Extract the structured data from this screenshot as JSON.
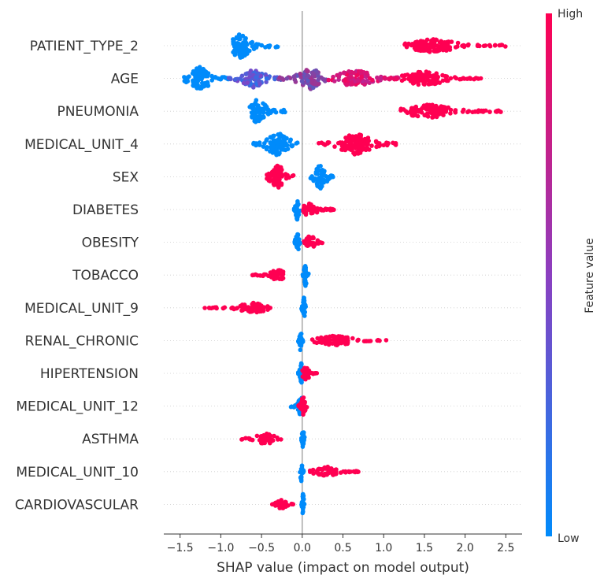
{
  "chart_data": {
    "type": "scatter",
    "subtype": "shap-beeswarm",
    "xlabel": "SHAP value (impact on model output)",
    "xlim": [
      -1.7,
      2.7
    ],
    "xticks": [
      -1.5,
      -1.0,
      -0.5,
      0.0,
      0.5,
      1.0,
      1.5,
      2.0,
      2.5
    ],
    "xtick_labels": [
      "−1.5",
      "−1.0",
      "−0.5",
      "0.0",
      "0.5",
      "1.0",
      "1.5",
      "2.0",
      "2.5"
    ],
    "colorbar": {
      "label": "Feature value",
      "high": "High",
      "low": "Low",
      "low_color": "#008bfb",
      "mid_color": "#8b3fc0",
      "high_color": "#ff0052"
    },
    "features": [
      {
        "name": "PATIENT_TYPE_2",
        "clusters": [
          {
            "from": -0.85,
            "to": -0.3,
            "peak": -0.76,
            "density": 1.0,
            "color": "low"
          },
          {
            "from": 1.25,
            "to": 2.5,
            "peak": 1.6,
            "density": 0.55,
            "color": "high"
          }
        ]
      },
      {
        "name": "AGE",
        "clusters": [
          {
            "from": -1.45,
            "to": -0.9,
            "peak": -1.25,
            "density": 1.0,
            "color": "low"
          },
          {
            "from": -0.9,
            "to": -0.3,
            "peak": -0.6,
            "density": 0.75,
            "color": "lowmid"
          },
          {
            "from": -0.3,
            "to": 0.3,
            "peak": 0.1,
            "density": 0.85,
            "color": "mid"
          },
          {
            "from": 0.3,
            "to": 1.2,
            "peak": 0.65,
            "density": 0.7,
            "color": "midhigh"
          },
          {
            "from": 1.2,
            "to": 2.2,
            "peak": 1.5,
            "density": 0.6,
            "color": "high"
          }
        ]
      },
      {
        "name": "PNEUMONIA",
        "clusters": [
          {
            "from": -0.65,
            "to": -0.2,
            "peak": -0.55,
            "density": 1.0,
            "color": "low"
          },
          {
            "from": 1.2,
            "to": 2.45,
            "peak": 1.55,
            "density": 0.55,
            "color": "high"
          }
        ]
      },
      {
        "name": "MEDICAL_UNIT_4",
        "clusters": [
          {
            "from": -0.6,
            "to": -0.05,
            "peak": -0.3,
            "density": 1.0,
            "color": "low"
          },
          {
            "from": 0.2,
            "to": 1.15,
            "peak": 0.65,
            "density": 0.85,
            "color": "high"
          }
        ]
      },
      {
        "name": "SEX",
        "clusters": [
          {
            "from": -0.45,
            "to": -0.1,
            "peak": -0.3,
            "density": 1.0,
            "color": "high"
          },
          {
            "from": 0.1,
            "to": 0.4,
            "peak": 0.22,
            "density": 1.0,
            "color": "low"
          }
        ]
      },
      {
        "name": "DIABETES",
        "clusters": [
          {
            "from": -0.1,
            "to": -0.02,
            "peak": -0.06,
            "density": 0.9,
            "color": "low"
          },
          {
            "from": 0.0,
            "to": 0.4,
            "peak": 0.08,
            "density": 0.55,
            "color": "high"
          }
        ]
      },
      {
        "name": "OBESITY",
        "clusters": [
          {
            "from": -0.1,
            "to": -0.02,
            "peak": -0.06,
            "density": 0.9,
            "color": "low"
          },
          {
            "from": 0.0,
            "to": 0.28,
            "peak": 0.1,
            "density": 0.55,
            "color": "high"
          }
        ]
      },
      {
        "name": "TOBACCO",
        "clusters": [
          {
            "from": -0.62,
            "to": -0.15,
            "peak": -0.3,
            "density": 0.45,
            "color": "high"
          },
          {
            "from": 0.0,
            "to": 0.08,
            "peak": 0.04,
            "density": 0.9,
            "color": "low"
          }
        ]
      },
      {
        "name": "MEDICAL_UNIT_9",
        "clusters": [
          {
            "from": -1.22,
            "to": -0.38,
            "peak": -0.6,
            "density": 0.4,
            "color": "high"
          },
          {
            "from": -0.02,
            "to": 0.05,
            "peak": 0.02,
            "density": 0.9,
            "color": "low"
          }
        ]
      },
      {
        "name": "RENAL_CHRONIC",
        "clusters": [
          {
            "from": -0.05,
            "to": 0.01,
            "peak": -0.02,
            "density": 0.9,
            "color": "low"
          },
          {
            "from": 0.12,
            "to": 1.05,
            "peak": 0.4,
            "density": 0.4,
            "color": "high"
          }
        ]
      },
      {
        "name": "HIPERTENSION",
        "clusters": [
          {
            "from": -0.05,
            "to": 0.02,
            "peak": -0.01,
            "density": 0.9,
            "color": "low"
          },
          {
            "from": 0.0,
            "to": 0.18,
            "peak": 0.05,
            "density": 0.6,
            "color": "high"
          }
        ]
      },
      {
        "name": "MEDICAL_UNIT_12",
        "clusters": [
          {
            "from": -0.15,
            "to": 0.02,
            "peak": -0.02,
            "density": 0.8,
            "color": "low"
          },
          {
            "from": -0.05,
            "to": 0.06,
            "peak": 0.01,
            "density": 0.8,
            "color": "high"
          }
        ]
      },
      {
        "name": "ASTHMA",
        "clusters": [
          {
            "from": -0.75,
            "to": -0.25,
            "peak": -0.45,
            "density": 0.45,
            "color": "high"
          },
          {
            "from": -0.01,
            "to": 0.03,
            "peak": 0.01,
            "density": 0.9,
            "color": "low"
          }
        ]
      },
      {
        "name": "MEDICAL_UNIT_10",
        "clusters": [
          {
            "from": -0.03,
            "to": 0.02,
            "peak": -0.01,
            "density": 0.9,
            "color": "low"
          },
          {
            "from": 0.08,
            "to": 0.75,
            "peak": 0.3,
            "density": 0.4,
            "color": "high"
          }
        ]
      },
      {
        "name": "CARDIOVASCULAR",
        "clusters": [
          {
            "from": -0.38,
            "to": -0.1,
            "peak": -0.25,
            "density": 0.4,
            "color": "high"
          },
          {
            "from": -0.01,
            "to": 0.03,
            "peak": 0.01,
            "density": 0.9,
            "color": "low"
          }
        ]
      }
    ]
  }
}
